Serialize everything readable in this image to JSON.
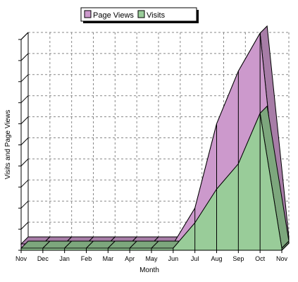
{
  "chart_data": {
    "type": "area",
    "style": "3d-stacked-depth",
    "categories": [
      "Nov",
      "Dec",
      "Jan",
      "Feb",
      "Mar",
      "Apr",
      "May",
      "Jun",
      "Jul",
      "Aug",
      "Sep",
      "Oct",
      "Nov"
    ],
    "series": [
      {
        "name": "Page Views",
        "color": "#cc99cc",
        "values": [
          0.3,
          0.3,
          0.3,
          0.3,
          0.3,
          0.3,
          0.3,
          0.3,
          2.0,
          6.0,
          8.5,
          10.3,
          0.3
        ]
      },
      {
        "name": "Visits",
        "color": "#99cc99",
        "values": [
          0.1,
          0.1,
          0.1,
          0.1,
          0.1,
          0.1,
          0.1,
          0.1,
          1.3,
          2.9,
          4.1,
          6.5,
          0.1
        ]
      }
    ],
    "xlabel": "Month",
    "ylabel": "Visits and Page Views",
    "ylim": [
      0,
      10
    ],
    "y_ticks": 10,
    "y_tick_labels_visible": false,
    "grid": true,
    "legend_position": "top-center"
  }
}
